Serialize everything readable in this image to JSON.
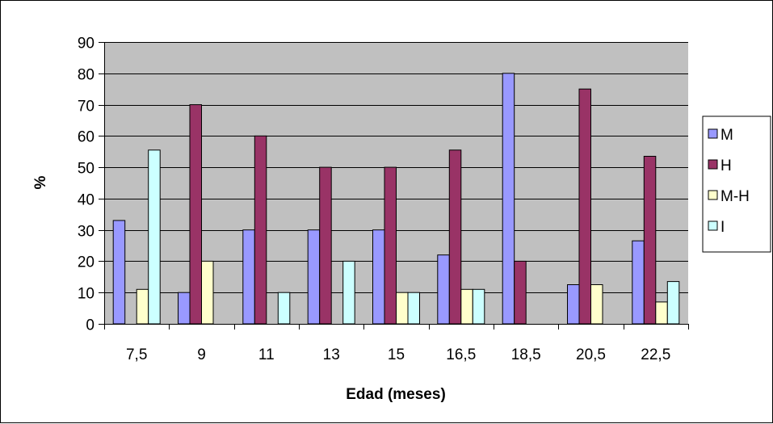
{
  "chart_data": {
    "type": "bar",
    "title": "",
    "xlabel": "Edad (meses)",
    "ylabel": "%",
    "categories": [
      "7,5",
      "9",
      "11",
      "13",
      "15",
      "16,5",
      "18,5",
      "20,5",
      "22,5"
    ],
    "ylim": [
      0,
      90
    ],
    "yticks": [
      "0",
      "10",
      "20",
      "30",
      "40",
      "50",
      "60",
      "70",
      "80",
      "90"
    ],
    "grid": true,
    "legend_position": "right",
    "plot_background": "#c0c0c0",
    "series": [
      {
        "name": "M",
        "color": "#9999ff",
        "values": [
          33,
          10,
          30,
          30,
          30,
          22,
          80,
          12.5,
          26.5
        ]
      },
      {
        "name": "H",
        "color": "#993366",
        "values": [
          0,
          70,
          60,
          50,
          50,
          55.5,
          20,
          75,
          53.5
        ]
      },
      {
        "name": "M-H",
        "color": "#ffffcc",
        "values": [
          11,
          20,
          0,
          0,
          10,
          11,
          0,
          12.5,
          7
        ]
      },
      {
        "name": "I",
        "color": "#ccffff",
        "values": [
          55.5,
          0,
          10,
          20,
          10,
          11,
          0,
          0,
          13.5
        ]
      }
    ]
  }
}
